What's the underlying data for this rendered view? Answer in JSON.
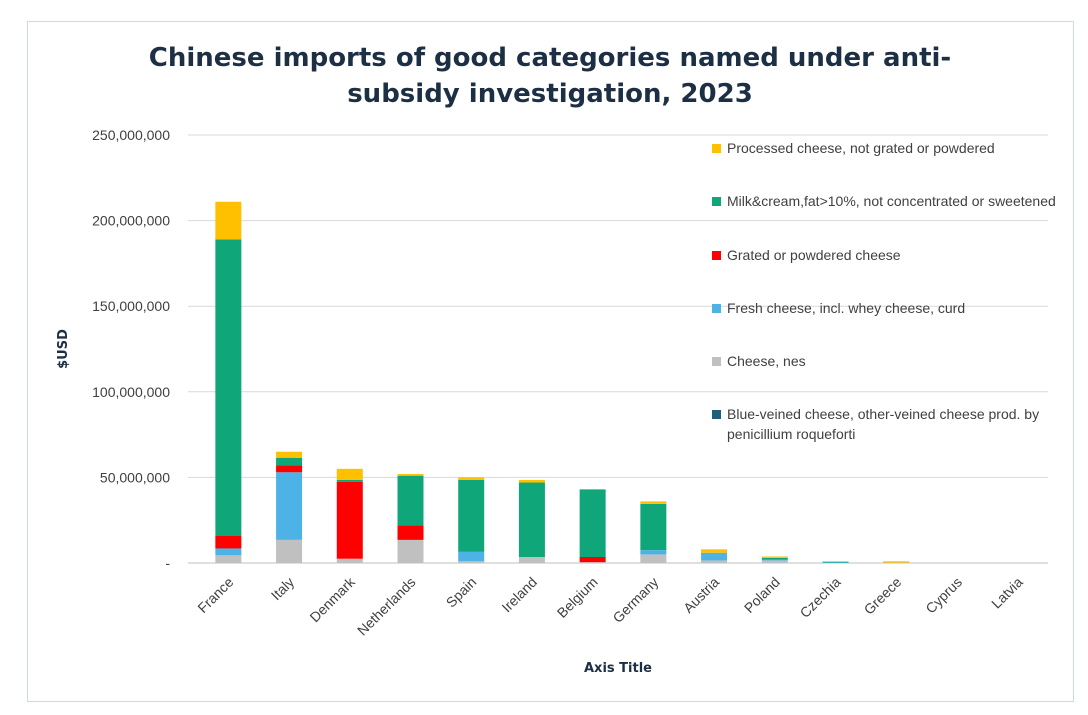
{
  "chart_data": {
    "type": "bar",
    "stacked": true,
    "title": "Chinese imports of good categories named under anti-subsidy investigation, 2023",
    "xlabel": "Axis Title",
    "ylabel": "$USD",
    "ylim": [
      0,
      250000000
    ],
    "yticks": [
      {
        "value": 0,
        "label": "-"
      },
      {
        "value": 50000000,
        "label": "50,000,000"
      },
      {
        "value": 100000000,
        "label": "100,000,000"
      },
      {
        "value": 150000000,
        "label": "150,000,000"
      },
      {
        "value": 200000000,
        "label": "200,000,000"
      },
      {
        "value": 250000000,
        "label": "250,000,000"
      }
    ],
    "grid": true,
    "legend_position": "right",
    "categories": [
      "France",
      "Italy",
      "Denmark",
      "Netherlands",
      "Spain",
      "Ireland",
      "Belgium",
      "Germany",
      "Austria",
      "Poland",
      "Czechia",
      "Greece",
      "Cyprus",
      "Latvia"
    ],
    "series": [
      {
        "name": "Blue-veined cheese, other-veined cheese prod. by penicillium roqueforti",
        "color": "#1f5f7a",
        "values": [
          0,
          0,
          0,
          0,
          0,
          0,
          0,
          0,
          0,
          0,
          0,
          0,
          0,
          0
        ]
      },
      {
        "name": "Cheese, nes",
        "color": "#c0c0c0",
        "values": [
          4500000,
          13500000,
          2500000,
          13500000,
          1000000,
          3500000,
          500000,
          5000000,
          1500000,
          1500000,
          300000,
          200000,
          0,
          0
        ]
      },
      {
        "name": "Fresh cheese, incl. whey cheese, curd",
        "color": "#4db3e6",
        "values": [
          4000000,
          39500000,
          0,
          0,
          5500000,
          0,
          0,
          2500000,
          4500000,
          500000,
          200000,
          0,
          0,
          0
        ]
      },
      {
        "name": "Grated or powdered cheese",
        "color": "#ff0000",
        "values": [
          7500000,
          4000000,
          45000000,
          8500000,
          0,
          0,
          3000000,
          0,
          0,
          0,
          0,
          0,
          0,
          0
        ]
      },
      {
        "name": "Milk&cream,fat>10%, not concentrated or sweetened",
        "color": "#0fa77a",
        "values": [
          173000000,
          4500000,
          1000000,
          29000000,
          42000000,
          43500000,
          39500000,
          27000000,
          0,
          1000000,
          300000,
          0,
          0,
          0
        ]
      },
      {
        "name": "Processed cheese, not grated or powdered",
        "color": "#ffc000",
        "values": [
          22000000,
          3500000,
          6500000,
          1000000,
          1500000,
          1500000,
          0,
          1500000,
          2000000,
          800000,
          0,
          800000,
          0,
          0
        ]
      }
    ],
    "legend_order": [
      5,
      4,
      3,
      2,
      1,
      0
    ]
  }
}
